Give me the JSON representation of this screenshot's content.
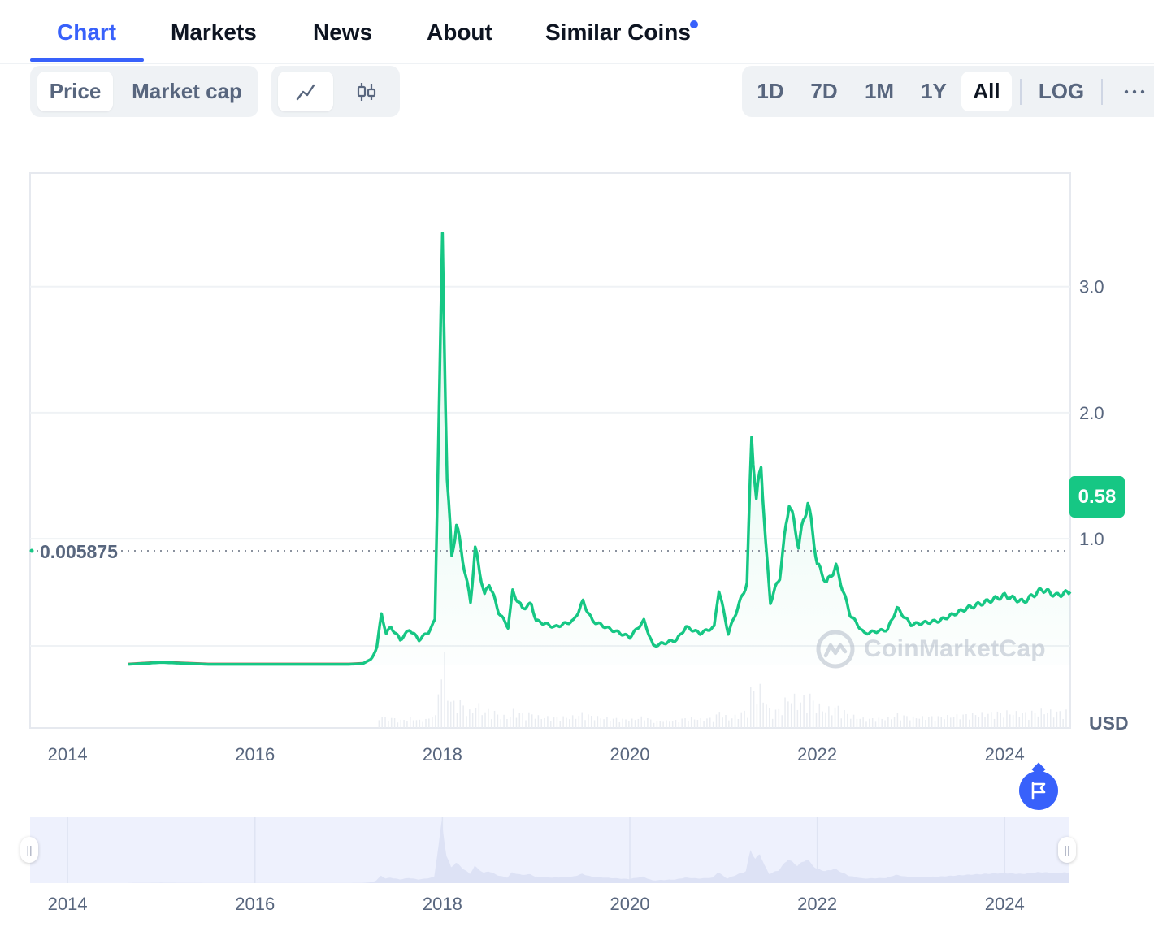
{
  "tabs": [
    {
      "label": "Chart",
      "active": true
    },
    {
      "label": "Markets"
    },
    {
      "label": "News"
    },
    {
      "label": "About"
    },
    {
      "label": "Similar Coins",
      "has_notification_dot": true
    }
  ],
  "toolbar": {
    "metric": {
      "price": "Price",
      "market_cap": "Market cap",
      "selected": "Price"
    },
    "chart_style": {
      "line_icon": "line-chart-icon",
      "candle_icon": "candlestick-icon",
      "selected": "line"
    },
    "ranges": [
      "1D",
      "7D",
      "1M",
      "1Y",
      "All"
    ],
    "selected_range": "All",
    "log": "LOG",
    "more_icon": "more-horizontal-icon"
  },
  "chart": {
    "start_price_label": "0.005875",
    "current_price_label": "0.58",
    "currency": "USD",
    "watermark": "CoinMarketCap",
    "flag_icon": "flag-icon",
    "colors": {
      "line": "#16c784",
      "accent": "#3861fb",
      "baseline_red": "#ea3943"
    }
  },
  "chart_data": {
    "type": "line",
    "x_ticks": [
      "2014",
      "2016",
      "2018",
      "2020",
      "2022",
      "2024"
    ],
    "y_ticks": [
      "1.0",
      "2.0",
      "3.0"
    ],
    "ylabel": "USD",
    "ylim": [
      -0.5,
      3.9
    ],
    "xlim": [
      2013.6,
      2024.7
    ],
    "series": [
      {
        "values": [
          [
            2014.65,
            0.005
          ],
          [
            2015.0,
            0.02
          ],
          [
            2015.5,
            0.005
          ],
          [
            2016.0,
            0.005
          ],
          [
            2016.5,
            0.005
          ],
          [
            2017.0,
            0.005
          ],
          [
            2017.15,
            0.01
          ],
          [
            2017.25,
            0.05
          ],
          [
            2017.3,
            0.15
          ],
          [
            2017.35,
            0.4
          ],
          [
            2017.4,
            0.25
          ],
          [
            2017.45,
            0.3
          ],
          [
            2017.55,
            0.2
          ],
          [
            2017.65,
            0.28
          ],
          [
            2017.75,
            0.2
          ],
          [
            2017.85,
            0.26
          ],
          [
            2017.92,
            0.35
          ],
          [
            2017.95,
            1.5
          ],
          [
            2018.0,
            3.33
          ],
          [
            2018.05,
            1.5
          ],
          [
            2018.1,
            0.85
          ],
          [
            2018.15,
            1.12
          ],
          [
            2018.25,
            0.7
          ],
          [
            2018.3,
            0.5
          ],
          [
            2018.35,
            0.92
          ],
          [
            2018.45,
            0.55
          ],
          [
            2018.5,
            0.65
          ],
          [
            2018.6,
            0.42
          ],
          [
            2018.7,
            0.3
          ],
          [
            2018.75,
            0.58
          ],
          [
            2018.85,
            0.45
          ],
          [
            2018.95,
            0.48
          ],
          [
            2019.0,
            0.35
          ],
          [
            2019.2,
            0.3
          ],
          [
            2019.4,
            0.35
          ],
          [
            2019.5,
            0.5
          ],
          [
            2019.6,
            0.35
          ],
          [
            2019.8,
            0.28
          ],
          [
            2020.0,
            0.22
          ],
          [
            2020.15,
            0.35
          ],
          [
            2020.25,
            0.15
          ],
          [
            2020.5,
            0.2
          ],
          [
            2020.6,
            0.3
          ],
          [
            2020.75,
            0.25
          ],
          [
            2020.9,
            0.3
          ],
          [
            2020.95,
            0.6
          ],
          [
            2021.05,
            0.25
          ],
          [
            2021.15,
            0.45
          ],
          [
            2021.25,
            0.65
          ],
          [
            2021.3,
            1.82
          ],
          [
            2021.35,
            1.3
          ],
          [
            2021.4,
            1.6
          ],
          [
            2021.45,
            0.95
          ],
          [
            2021.5,
            0.5
          ],
          [
            2021.6,
            0.7
          ],
          [
            2021.7,
            1.3
          ],
          [
            2021.8,
            0.95
          ],
          [
            2021.9,
            1.3
          ],
          [
            2022.0,
            0.8
          ],
          [
            2022.1,
            0.65
          ],
          [
            2022.2,
            0.78
          ],
          [
            2022.35,
            0.4
          ],
          [
            2022.5,
            0.25
          ],
          [
            2022.75,
            0.28
          ],
          [
            2022.85,
            0.45
          ],
          [
            2023.0,
            0.32
          ],
          [
            2023.3,
            0.35
          ],
          [
            2023.6,
            0.45
          ],
          [
            2023.8,
            0.5
          ],
          [
            2024.0,
            0.55
          ],
          [
            2024.2,
            0.5
          ],
          [
            2024.4,
            0.6
          ],
          [
            2024.55,
            0.55
          ],
          [
            2024.7,
            0.58
          ]
        ]
      }
    ]
  }
}
